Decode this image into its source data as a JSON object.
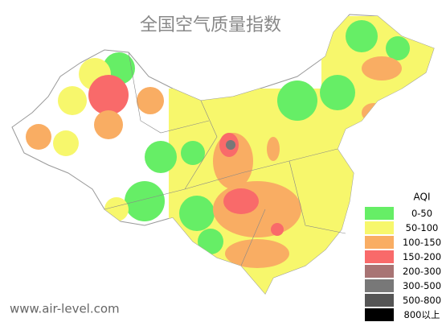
{
  "header": {
    "title": "全国空气质量指数"
  },
  "legend": {
    "title": "AQI",
    "items": [
      {
        "label": "0-50",
        "color": "#66ee66"
      },
      {
        "label": "50-100",
        "color": "#f7f76c"
      },
      {
        "label": "100-150",
        "color": "#f9ad63"
      },
      {
        "label": "150-200",
        "color": "#f96a6a"
      },
      {
        "label": "200-300",
        "color": "#a87474"
      },
      {
        "label": "300-500",
        "color": "#787878"
      },
      {
        "label": "500-800",
        "color": "#555555"
      },
      {
        "label": "800以上",
        "color": "#000000"
      }
    ]
  },
  "footer": {
    "watermark": "www.air-level.com"
  }
}
